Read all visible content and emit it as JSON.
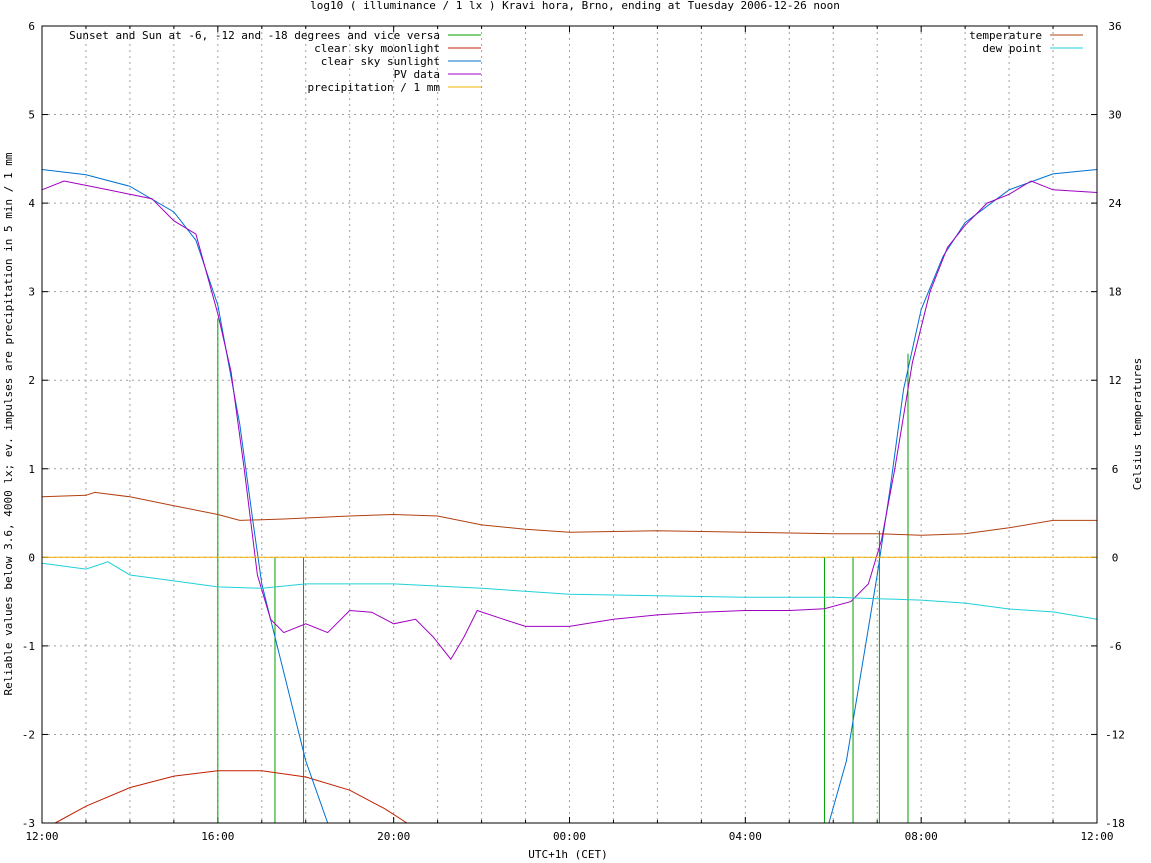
{
  "chart_data": {
    "type": "line",
    "title": "log10 ( illuminance / 1 lx ) Kravi hora, Brno, ending at Tuesday 2006-12-26 noon",
    "xlabel": "UTC+1h (CET)",
    "ylabel": "Reliable values below 3.6, 4000 lx; ev. impulses are precipitation in 5 min / 1 mm",
    "y2label": "Celsius temperatures",
    "x_ticks": [
      "12:00",
      "16:00",
      "20:00",
      "00:00",
      "04:00",
      "08:00",
      "12:00"
    ],
    "x_range_hours": [
      0,
      24
    ],
    "ylim": [
      -3,
      6
    ],
    "y_ticks": [
      "-3",
      "-2",
      "-1",
      "0",
      "1",
      "2",
      "3",
      "4",
      "5",
      "6"
    ],
    "y2lim": [
      -18,
      36
    ],
    "y2_ticks": [
      "-18",
      "-12",
      "-6",
      "0",
      "6",
      "12",
      "18",
      "24",
      "30",
      "36"
    ],
    "grid": true,
    "legend_left": [
      {
        "label": "Sunset and Sun at -6, -12 and -18 degrees and vice versa",
        "color": "#00a000"
      },
      {
        "label": "clear sky moonlight",
        "color": "#c02000"
      },
      {
        "label": "clear sky sunlight",
        "color": "#0070d0"
      },
      {
        "label": "PV data",
        "color": "#a000c0"
      },
      {
        "label": "precipitation / 1 mm",
        "color": "#f0b000"
      }
    ],
    "legend_right": [
      {
        "label": "temperature",
        "color": "#b04010"
      },
      {
        "label": "dew point",
        "color": "#20d0d8"
      }
    ],
    "series": [
      {
        "name": "Sunset and Sun at -6, -12 and -18 degrees and vice versa",
        "kind": "impulses",
        "points": [
          [
            4.0,
            2.7
          ],
          [
            5.3,
            0
          ],
          [
            5.95,
            0
          ],
          [
            17.8,
            0
          ],
          [
            18.45,
            0
          ],
          [
            19.05,
            0.3
          ],
          [
            19.7,
            2.3
          ]
        ]
      },
      {
        "name": "clear sky moonlight",
        "axis": "y",
        "points": [
          [
            0.3,
            -3.0
          ],
          [
            1,
            -2.81
          ],
          [
            2,
            -2.6
          ],
          [
            3,
            -2.47
          ],
          [
            4,
            -2.41
          ],
          [
            5,
            -2.41
          ],
          [
            6,
            -2.48
          ],
          [
            7,
            -2.63
          ],
          [
            7.8,
            -2.84
          ],
          [
            8.3,
            -3.0
          ]
        ]
      },
      {
        "name": "clear sky sunlight",
        "axis": "y",
        "points": [
          [
            0,
            4.38
          ],
          [
            1,
            4.32
          ],
          [
            2,
            4.19
          ],
          [
            3,
            3.9
          ],
          [
            3.5,
            3.58
          ],
          [
            4,
            2.85
          ],
          [
            4.5,
            1.5
          ],
          [
            4.8,
            0.4
          ],
          [
            5,
            -0.3
          ],
          [
            5.5,
            -1.3
          ],
          [
            6,
            -2.3
          ],
          [
            6.5,
            -3.0
          ],
          [
            17.9,
            -3.0
          ],
          [
            18.3,
            -2.3
          ],
          [
            18.7,
            -1.1
          ],
          [
            19,
            -0.2
          ],
          [
            19.3,
            0.8
          ],
          [
            19.6,
            1.9
          ],
          [
            20,
            2.8
          ],
          [
            20.5,
            3.4
          ],
          [
            21,
            3.78
          ],
          [
            22,
            4.15
          ],
          [
            23,
            4.33
          ],
          [
            24,
            4.38
          ]
        ]
      },
      {
        "name": "PV data",
        "axis": "y",
        "points": [
          [
            0,
            4.15
          ],
          [
            0.5,
            4.25
          ],
          [
            1,
            4.2
          ],
          [
            1.5,
            4.15
          ],
          [
            2,
            4.1
          ],
          [
            2.5,
            4.05
          ],
          [
            3,
            3.8
          ],
          [
            3.5,
            3.65
          ],
          [
            4,
            2.75
          ],
          [
            4.3,
            2.1
          ],
          [
            4.6,
            1.0
          ],
          [
            4.9,
            -0.2
          ],
          [
            5.2,
            -0.7
          ],
          [
            5.5,
            -0.85
          ],
          [
            6,
            -0.75
          ],
          [
            6.5,
            -0.85
          ],
          [
            7,
            -0.6
          ],
          [
            7.5,
            -0.62
          ],
          [
            8,
            -0.75
          ],
          [
            8.5,
            -0.7
          ],
          [
            8.9,
            -0.9
          ],
          [
            9.3,
            -1.15
          ],
          [
            9.6,
            -0.9
          ],
          [
            9.9,
            -0.6
          ],
          [
            10.5,
            -0.7
          ],
          [
            11,
            -0.78
          ],
          [
            12,
            -0.78
          ],
          [
            13,
            -0.7
          ],
          [
            14,
            -0.65
          ],
          [
            15,
            -0.62
          ],
          [
            16,
            -0.6
          ],
          [
            17,
            -0.6
          ],
          [
            17.8,
            -0.58
          ],
          [
            18.4,
            -0.5
          ],
          [
            18.8,
            -0.3
          ],
          [
            19.1,
            0.2
          ],
          [
            19.4,
            1.0
          ],
          [
            19.8,
            2.2
          ],
          [
            20.2,
            3.0
          ],
          [
            20.6,
            3.5
          ],
          [
            21,
            3.75
          ],
          [
            21.5,
            4.0
          ],
          [
            22,
            4.1
          ],
          [
            22.5,
            4.25
          ],
          [
            23,
            4.15
          ],
          [
            24,
            4.12
          ]
        ]
      },
      {
        "name": "precipitation / 1 mm",
        "axis": "y",
        "points": [
          [
            0,
            0
          ],
          [
            24,
            0
          ]
        ]
      },
      {
        "name": "temperature",
        "axis": "y2",
        "points": [
          [
            0,
            4.1
          ],
          [
            1,
            4.2
          ],
          [
            1.2,
            4.4
          ],
          [
            2,
            4.1
          ],
          [
            3,
            3.5
          ],
          [
            4,
            2.9
          ],
          [
            4.5,
            2.5
          ],
          [
            5.5,
            2.6
          ],
          [
            7,
            2.8
          ],
          [
            8,
            2.9
          ],
          [
            9,
            2.8
          ],
          [
            10,
            2.2
          ],
          [
            11,
            1.9
          ],
          [
            12,
            1.7
          ],
          [
            14,
            1.8
          ],
          [
            16,
            1.7
          ],
          [
            18,
            1.6
          ],
          [
            19,
            1.6
          ],
          [
            20,
            1.5
          ],
          [
            21,
            1.6
          ],
          [
            22,
            2.0
          ],
          [
            23,
            2.5
          ],
          [
            24,
            2.5
          ]
        ]
      },
      {
        "name": "dew point",
        "axis": "y2",
        "points": [
          [
            0,
            -0.4
          ],
          [
            1,
            -0.8
          ],
          [
            1.5,
            -0.3
          ],
          [
            2,
            -1.2
          ],
          [
            3,
            -1.6
          ],
          [
            4,
            -2.0
          ],
          [
            5,
            -2.1
          ],
          [
            6,
            -1.8
          ],
          [
            8,
            -1.8
          ],
          [
            10,
            -2.1
          ],
          [
            12,
            -2.5
          ],
          [
            14,
            -2.6
          ],
          [
            16,
            -2.7
          ],
          [
            18,
            -2.7
          ],
          [
            20,
            -2.9
          ],
          [
            21,
            -3.1
          ],
          [
            22,
            -3.5
          ],
          [
            23,
            -3.7
          ],
          [
            24,
            -4.2
          ]
        ]
      }
    ]
  }
}
